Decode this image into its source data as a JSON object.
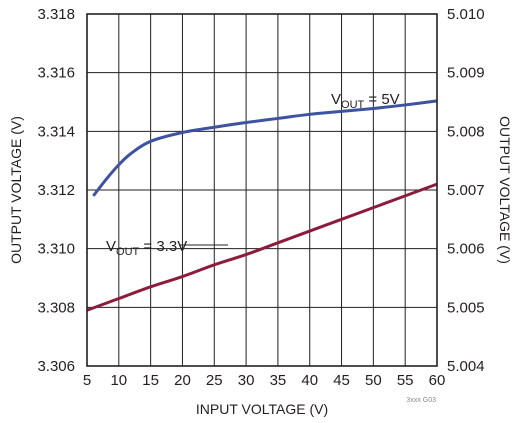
{
  "chart_data": {
    "type": "line",
    "title": "",
    "xlabel": "INPUT VOLTAGE (V)",
    "ylabel_left": "OUTPUT VOLTAGE (V)",
    "ylabel_right": "OUTPUT VOLTAGE (V)",
    "xlim": [
      5,
      60
    ],
    "ylim_left": [
      3.306,
      3.318
    ],
    "ylim_right": [
      5.004,
      5.01
    ],
    "x_ticks": [
      "5",
      "10",
      "15",
      "20",
      "25",
      "30",
      "35",
      "40",
      "45",
      "50",
      "55",
      "60"
    ],
    "y_ticks_left": [
      "3.318",
      "3.316",
      "3.314",
      "3.312",
      "3.310",
      "3.308",
      "3.306"
    ],
    "y_ticks_right": [
      "5.010",
      "5.009",
      "5.008",
      "5.007",
      "5.006",
      "5.005",
      "5.004"
    ],
    "grid": true,
    "figure_id": "3xxx G03",
    "series": [
      {
        "label_main": "V",
        "label_sub": "OUT",
        "label_rest": " = 5V",
        "axis": "right",
        "color": "#3d52a1",
        "x": [
          6,
          8,
          10,
          12,
          15,
          20,
          25,
          30,
          35,
          40,
          45,
          50,
          55,
          60
        ],
        "values": [
          5.0069,
          5.00718,
          5.00743,
          5.00763,
          5.00783,
          5.00798,
          5.00807,
          5.00815,
          5.00822,
          5.00829,
          5.00834,
          5.00839,
          5.00845,
          5.00852
        ]
      },
      {
        "label_main": "V",
        "label_sub": "OUT",
        "label_rest": " = 3.3V",
        "axis": "left",
        "color": "#8c1c3c",
        "x": [
          5,
          10,
          15,
          20,
          25,
          30,
          35,
          40,
          45,
          50,
          55,
          60
        ],
        "values": [
          3.3079,
          3.3083,
          3.3087,
          3.30905,
          3.30945,
          3.3098,
          3.3102,
          3.3106,
          3.311,
          3.3114,
          3.3118,
          3.3122
        ]
      }
    ]
  }
}
